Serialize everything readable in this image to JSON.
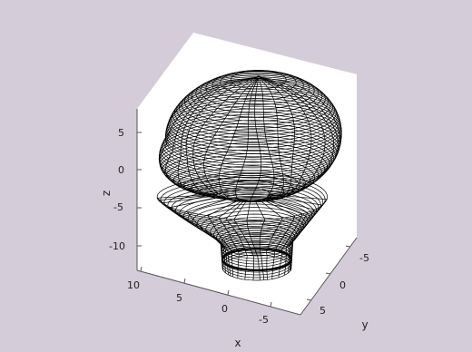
{
  "chart_data": {
    "type": "3d-wireframe-surface",
    "title": "",
    "xlabel": "x",
    "ylabel": "y",
    "zlabel": "z",
    "x_ticks": [
      "10",
      "5",
      "0",
      "-5"
    ],
    "y_ticks": [
      "-5",
      "0",
      "5"
    ],
    "z_ticks": [
      "5",
      "0",
      "-5",
      "-10"
    ],
    "xlim": [
      -10,
      10
    ],
    "ylim": [
      -8,
      8
    ],
    "zlim": [
      -13,
      9
    ],
    "grid": false,
    "surface": "head-shaped contour wireframe",
    "colors": {
      "figure_background": "#d4ccd8",
      "axes_background": "#ffffff",
      "box_side": "#f2eef4",
      "mesh_line": "#000000"
    }
  }
}
